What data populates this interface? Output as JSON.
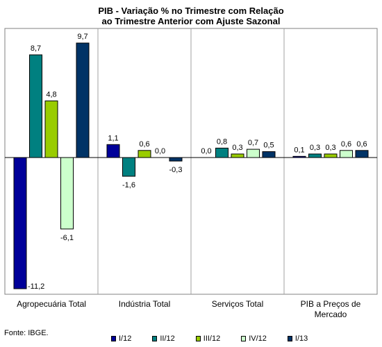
{
  "chart_data": {
    "type": "bar",
    "title": [
      "PIB - Variação % no Trimestre com Relação",
      "ao Trimestre Anterior com Ajuste Sazonal"
    ],
    "categories": [
      "Agropecuária Total",
      "Indústria Total",
      "Serviços Total",
      "PIB a Preços de Mercado"
    ],
    "series": [
      {
        "name": "I/12",
        "values": [
          -11.2,
          1.1,
          0.0,
          0.1
        ],
        "labels": [
          "-11,2",
          "1,1",
          "0,0",
          "0,1"
        ],
        "color": "#000099"
      },
      {
        "name": "II/12",
        "values": [
          8.7,
          -1.6,
          0.8,
          0.3
        ],
        "labels": [
          "8,7",
          "-1,6",
          "0,8",
          "0,3"
        ],
        "color": "#008080"
      },
      {
        "name": "III/12",
        "values": [
          4.8,
          0.6,
          0.3,
          0.3
        ],
        "labels": [
          "4,8",
          "0,6",
          "0,3",
          "0,3"
        ],
        "color": "#99cc00"
      },
      {
        "name": "IV/12",
        "values": [
          -6.1,
          0.0,
          0.7,
          0.6
        ],
        "labels": [
          "-6,1",
          "0,0",
          "0,7",
          "0,6"
        ],
        "color": "#ccffcc"
      },
      {
        "name": "I/13",
        "values": [
          9.7,
          -0.3,
          0.5,
          0.6
        ],
        "labels": [
          "9,7",
          "-0,3",
          "0,5",
          "0,6"
        ],
        "color": "#003366"
      }
    ],
    "ylim": [
      -11.2,
      9.7
    ],
    "grid": "vertical separators",
    "legend": "bottom"
  },
  "source": "Fonte: IBGE."
}
